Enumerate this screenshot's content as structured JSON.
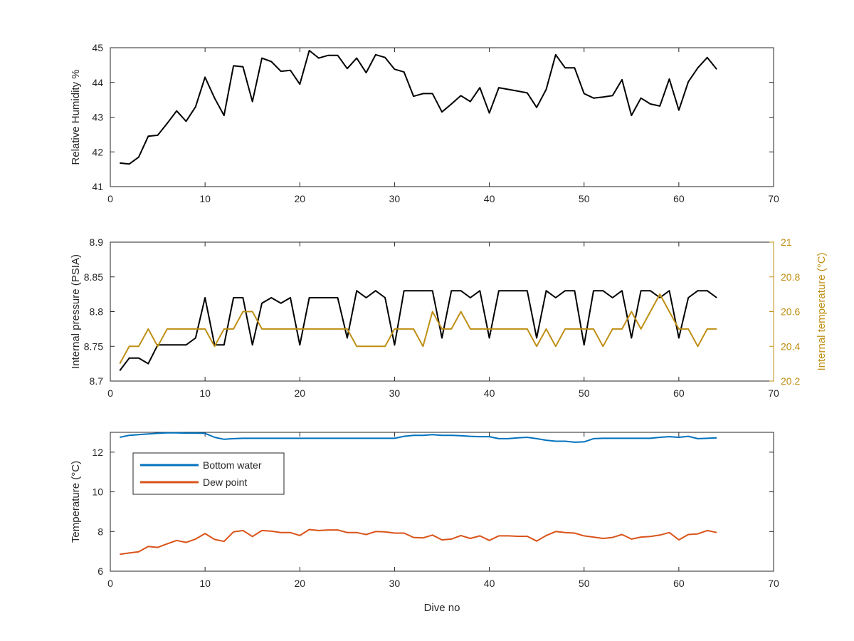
{
  "chart_data": [
    {
      "type": "line",
      "panel": "top",
      "ylabel": "Relative Humidity %",
      "xlim": [
        0,
        70
      ],
      "ylim": [
        41,
        45
      ],
      "xticks": [
        "0",
        "10",
        "20",
        "30",
        "40",
        "50",
        "60",
        "70"
      ],
      "yticks": [
        "41",
        "42",
        "43",
        "44",
        "45"
      ],
      "series": [
        {
          "color": "#000000",
          "x": [
            1,
            2,
            3,
            4,
            5,
            6,
            7,
            8,
            9,
            10,
            11,
            12,
            13,
            14,
            15,
            16,
            17,
            18,
            19,
            20,
            21,
            22,
            23,
            24,
            25,
            26,
            27,
            28,
            29,
            30,
            31,
            32,
            33,
            34,
            35,
            36,
            37,
            38,
            39,
            40,
            41,
            42,
            43,
            44,
            45,
            46,
            47,
            48,
            49,
            50,
            51,
            52,
            53,
            54,
            55,
            56,
            57,
            58,
            59,
            60,
            61,
            62,
            63,
            64
          ],
          "values": [
            41.68,
            41.65,
            41.85,
            42.45,
            42.48,
            42.82,
            43.18,
            42.88,
            43.3,
            44.15,
            43.55,
            43.05,
            44.48,
            44.45,
            43.45,
            44.7,
            44.6,
            44.32,
            44.35,
            43.95,
            44.92,
            44.7,
            44.78,
            44.78,
            44.4,
            44.7,
            44.28,
            44.8,
            44.72,
            44.38,
            44.3,
            43.6,
            43.68,
            43.68,
            43.15,
            43.38,
            43.62,
            43.45,
            43.85,
            43.12,
            43.85,
            43.8,
            43.75,
            43.7,
            43.28,
            43.8,
            44.8,
            44.42,
            44.42,
            43.68,
            43.55,
            43.58,
            43.62,
            44.08,
            43.05,
            43.55,
            43.38,
            43.32,
            44.1,
            43.2,
            44.02,
            44.42,
            44.72,
            44.38
          ]
        }
      ]
    },
    {
      "type": "line",
      "panel": "middle",
      "ylabel": "Internal pressure (PSIA)",
      "y2label": "Internal temperature (°C)",
      "xlim": [
        0,
        70
      ],
      "ylim": [
        8.7,
        8.9
      ],
      "y2lim": [
        20.2,
        21
      ],
      "xticks": [
        "0",
        "10",
        "20",
        "30",
        "40",
        "50",
        "60",
        "70"
      ],
      "yticks": [
        "8.7",
        "8.75",
        "8.8",
        "8.85",
        "8.9"
      ],
      "y2ticks": [
        "20.2",
        "20.4",
        "20.6",
        "20.8",
        "21"
      ],
      "y2color": "#bf8f14",
      "series": [
        {
          "axis": "left",
          "color": "#000000",
          "x": [
            1,
            2,
            3,
            4,
            5,
            6,
            7,
            8,
            9,
            10,
            11,
            12,
            13,
            14,
            15,
            16,
            17,
            18,
            19,
            20,
            21,
            22,
            23,
            24,
            25,
            26,
            27,
            28,
            29,
            30,
            31,
            32,
            33,
            34,
            35,
            36,
            37,
            38,
            39,
            40,
            41,
            42,
            43,
            44,
            45,
            46,
            47,
            48,
            49,
            50,
            51,
            52,
            53,
            54,
            55,
            56,
            57,
            58,
            59,
            60,
            61,
            62,
            63,
            64
          ],
          "values": [
            8.715,
            8.733,
            8.733,
            8.725,
            8.752,
            8.752,
            8.752,
            8.752,
            8.762,
            8.82,
            8.752,
            8.752,
            8.82,
            8.82,
            8.752,
            8.812,
            8.82,
            8.812,
            8.82,
            8.752,
            8.82,
            8.82,
            8.82,
            8.82,
            8.762,
            8.83,
            8.82,
            8.83,
            8.82,
            8.752,
            8.83,
            8.83,
            8.83,
            8.83,
            8.762,
            8.83,
            8.83,
            8.82,
            8.83,
            8.762,
            8.83,
            8.83,
            8.83,
            8.83,
            8.762,
            8.83,
            8.82,
            8.83,
            8.83,
            8.752,
            8.83,
            8.83,
            8.82,
            8.83,
            8.762,
            8.83,
            8.83,
            8.82,
            8.83,
            8.762,
            8.82,
            8.83,
            8.83,
            8.82
          ]
        },
        {
          "axis": "right",
          "color": "#bf8f14",
          "x": [
            1,
            2,
            3,
            4,
            5,
            6,
            7,
            8,
            9,
            10,
            11,
            12,
            13,
            14,
            15,
            16,
            17,
            18,
            19,
            20,
            21,
            22,
            23,
            24,
            25,
            26,
            27,
            28,
            29,
            30,
            31,
            32,
            33,
            34,
            35,
            36,
            37,
            38,
            39,
            40,
            41,
            42,
            43,
            44,
            45,
            46,
            47,
            48,
            49,
            50,
            51,
            52,
            53,
            54,
            55,
            56,
            57,
            58,
            59,
            60,
            61,
            62,
            63,
            64
          ],
          "values": [
            20.3,
            20.4,
            20.4,
            20.5,
            20.4,
            20.5,
            20.5,
            20.5,
            20.5,
            20.5,
            20.4,
            20.5,
            20.5,
            20.6,
            20.6,
            20.5,
            20.5,
            20.5,
            20.5,
            20.5,
            20.5,
            20.5,
            20.5,
            20.5,
            20.5,
            20.4,
            20.4,
            20.4,
            20.4,
            20.5,
            20.5,
            20.5,
            20.4,
            20.6,
            20.5,
            20.5,
            20.6,
            20.5,
            20.5,
            20.5,
            20.5,
            20.5,
            20.5,
            20.5,
            20.4,
            20.5,
            20.4,
            20.5,
            20.5,
            20.5,
            20.5,
            20.4,
            20.5,
            20.5,
            20.6,
            20.5,
            20.6,
            20.7,
            20.6,
            20.5,
            20.5,
            20.4,
            20.5,
            20.5
          ]
        }
      ]
    },
    {
      "type": "line",
      "panel": "bottom",
      "xlabel": "Dive no",
      "ylabel": "Temperature (°C)",
      "xlim": [
        0,
        70
      ],
      "ylim": [
        6,
        13
      ],
      "xticks": [
        "0",
        "10",
        "20",
        "30",
        "40",
        "50",
        "60",
        "70"
      ],
      "yticks": [
        "6",
        "8",
        "10",
        "12"
      ],
      "legend_position": "top-left",
      "series": [
        {
          "name": "Bottom water",
          "color": "#0072bd",
          "x": [
            1,
            2,
            3,
            4,
            5,
            6,
            7,
            8,
            9,
            10,
            11,
            12,
            13,
            14,
            15,
            16,
            17,
            18,
            19,
            20,
            21,
            22,
            23,
            24,
            25,
            26,
            27,
            28,
            29,
            30,
            31,
            32,
            33,
            34,
            35,
            36,
            37,
            38,
            39,
            40,
            41,
            42,
            43,
            44,
            45,
            46,
            47,
            48,
            49,
            50,
            51,
            52,
            53,
            54,
            55,
            56,
            57,
            58,
            59,
            60,
            61,
            62,
            63,
            64
          ],
          "values": [
            12.75,
            12.85,
            12.88,
            12.92,
            12.95,
            12.97,
            12.97,
            12.96,
            12.96,
            12.95,
            12.75,
            12.65,
            12.68,
            12.7,
            12.7,
            12.7,
            12.7,
            12.7,
            12.7,
            12.7,
            12.7,
            12.7,
            12.7,
            12.7,
            12.7,
            12.7,
            12.7,
            12.7,
            12.7,
            12.7,
            12.8,
            12.85,
            12.85,
            12.88,
            12.85,
            12.85,
            12.83,
            12.8,
            12.78,
            12.78,
            12.68,
            12.68,
            12.72,
            12.75,
            12.68,
            12.6,
            12.55,
            12.55,
            12.5,
            12.52,
            12.68,
            12.7,
            12.7,
            12.7,
            12.7,
            12.7,
            12.7,
            12.75,
            12.78,
            12.75,
            12.8,
            12.68,
            12.7,
            12.72
          ]
        },
        {
          "name": "Dew point",
          "color": "#d95319",
          "x": [
            1,
            2,
            3,
            4,
            5,
            6,
            7,
            8,
            9,
            10,
            11,
            12,
            13,
            14,
            15,
            16,
            17,
            18,
            19,
            20,
            21,
            22,
            23,
            24,
            25,
            26,
            27,
            28,
            29,
            30,
            31,
            32,
            33,
            34,
            35,
            36,
            37,
            38,
            39,
            40,
            41,
            42,
            43,
            44,
            45,
            46,
            47,
            48,
            49,
            50,
            51,
            52,
            53,
            54,
            55,
            56,
            57,
            58,
            59,
            60,
            61,
            62,
            63,
            64
          ],
          "values": [
            6.85,
            6.92,
            6.98,
            7.25,
            7.2,
            7.38,
            7.55,
            7.45,
            7.62,
            7.9,
            7.6,
            7.5,
            7.98,
            8.05,
            7.75,
            8.05,
            8.02,
            7.95,
            7.95,
            7.8,
            8.1,
            8.05,
            8.08,
            8.08,
            7.95,
            7.95,
            7.85,
            8.0,
            7.98,
            7.92,
            7.92,
            7.7,
            7.68,
            7.82,
            7.58,
            7.62,
            7.8,
            7.65,
            7.78,
            7.55,
            7.78,
            7.78,
            7.76,
            7.76,
            7.52,
            7.8,
            8.0,
            7.95,
            7.92,
            7.78,
            7.72,
            7.65,
            7.7,
            7.85,
            7.62,
            7.72,
            7.75,
            7.82,
            7.95,
            7.58,
            7.85,
            7.88,
            8.05,
            7.95
          ]
        }
      ]
    }
  ]
}
